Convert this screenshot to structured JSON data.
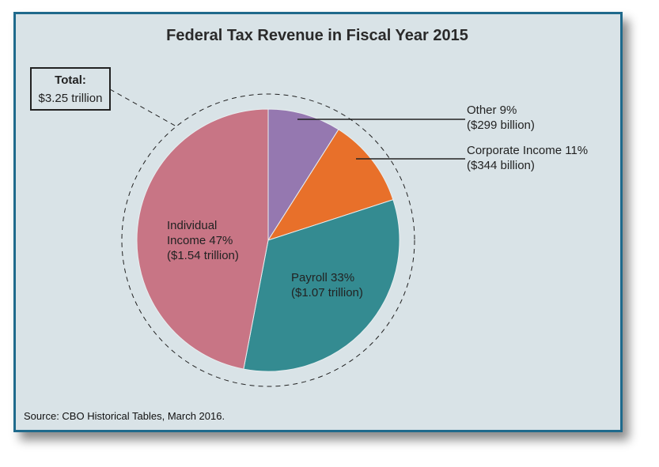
{
  "chart_data": {
    "type": "pie",
    "title": "Federal Tax Revenue in Fiscal Year 2015",
    "total_label": "Total:",
    "total_value": "$3.25 trillion",
    "source": "Source: CBO Historical Tables, March 2016.",
    "start": "top",
    "direction": "clockwise",
    "slices": [
      {
        "name": "Other",
        "percent": 9,
        "label": [
          "Other 9%",
          "($299 billion)"
        ],
        "color": "#9578b0"
      },
      {
        "name": "Corporate Income",
        "percent": 11,
        "label": [
          "Corporate Income 11%",
          "($344 billion)"
        ],
        "color": "#e8702a"
      },
      {
        "name": "Payroll",
        "percent": 33,
        "label": [
          "Payroll 33%",
          "($1.07 trillion)"
        ],
        "color": "#348b91"
      },
      {
        "name": "Individual Income",
        "percent": 47,
        "label": [
          "Individual",
          "Income 47%",
          "($1.54 trillion)"
        ],
        "color": "#c87585"
      }
    ]
  }
}
